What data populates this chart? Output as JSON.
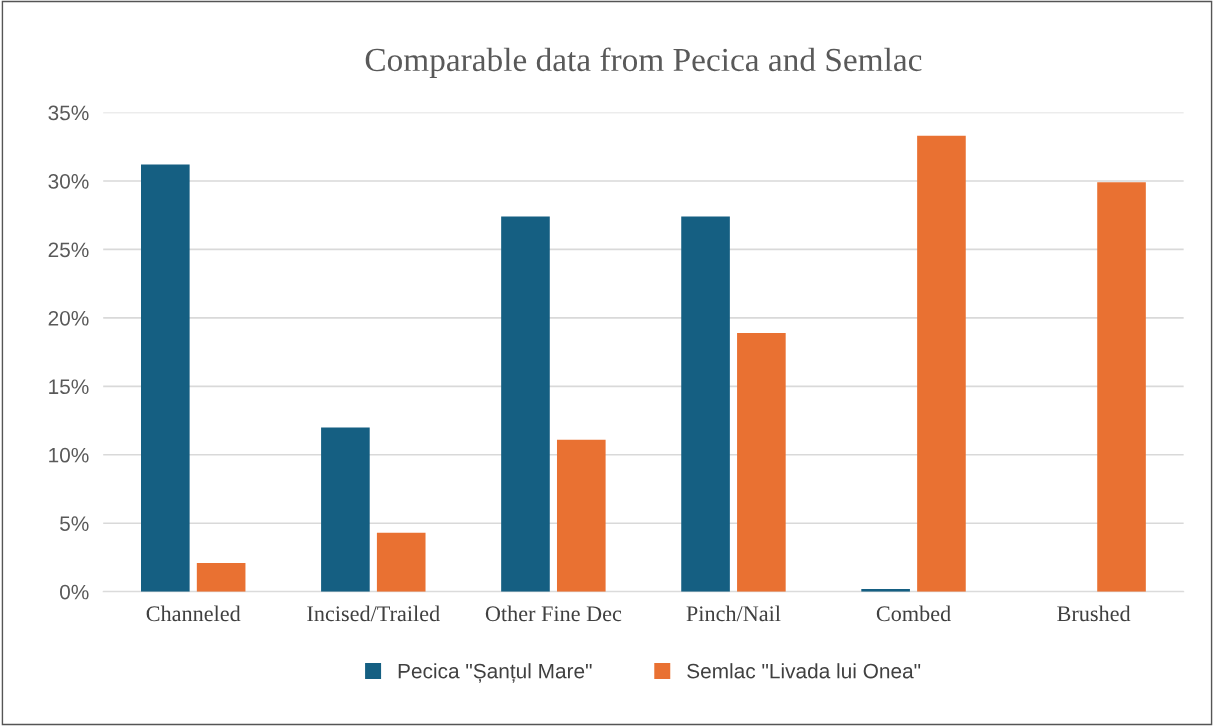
{
  "chart_data": {
    "type": "bar",
    "title": "Comparable data from Pecica and Semlac",
    "categories": [
      "Channeled",
      "Incised/Trailed",
      "Other Fine Dec",
      "Pinch/Nail",
      "Combed",
      "Brushed"
    ],
    "series": [
      {
        "name": "Pecica \"Șanțul Mare\"",
        "color": "#155f82",
        "values": [
          31.2,
          12.0,
          27.4,
          27.4,
          0.2,
          0
        ]
      },
      {
        "name": "Semlac \"Livada lui Onea\"",
        "color": "#e97132",
        "values": [
          2.1,
          4.3,
          11.1,
          18.9,
          33.3,
          29.9
        ]
      }
    ],
    "ylim": [
      0,
      35
    ],
    "yticks": [
      {
        "value": 0,
        "label": "0%"
      },
      {
        "value": 5,
        "label": "5%"
      },
      {
        "value": 10,
        "label": "10%"
      },
      {
        "value": 15,
        "label": "15%"
      },
      {
        "value": 20,
        "label": "20%"
      },
      {
        "value": 25,
        "label": "25%"
      },
      {
        "value": 30,
        "label": "30%"
      },
      {
        "value": 35,
        "label": "35%"
      }
    ],
    "grid": "y",
    "legend": "bottom"
  }
}
